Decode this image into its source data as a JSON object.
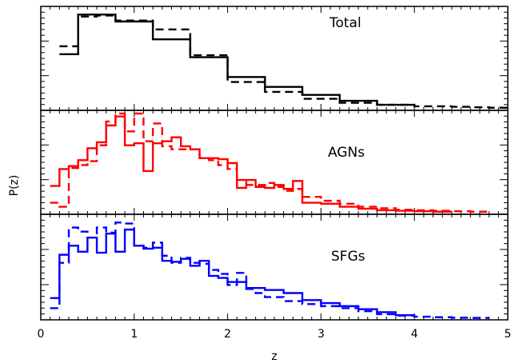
{
  "chart_data": {
    "type": "step",
    "xlabel": "z",
    "ylabel": "P(z)",
    "xlim": [
      0,
      5
    ],
    "x_ticks": [
      0,
      1,
      2,
      3,
      4,
      5
    ],
    "x_tick_labels": [
      "0",
      "1",
      "2",
      "3",
      "4",
      "5"
    ],
    "panels": [
      {
        "label": "Total",
        "color": "#000000",
        "ylim": [
          0,
          1.0
        ],
        "series": [
          {
            "style": "solid",
            "edges": [
              0.2,
              0.4,
              0.8,
              1.2,
              1.6,
              2.0,
              2.4,
              2.8,
              3.2,
              3.6,
              4.0
            ],
            "values": [
              0.55,
              0.95,
              0.88,
              0.7,
              0.52,
              0.32,
              0.22,
              0.14,
              0.08,
              0.04
            ]
          },
          {
            "style": "dashed",
            "edges": [
              0.2,
              0.4,
              0.6,
              0.8,
              1.0,
              1.2,
              1.4,
              1.6,
              1.8,
              2.0,
              2.2,
              2.4,
              2.6,
              2.8,
              3.0,
              3.2,
              3.4,
              3.6,
              3.8,
              4.0,
              4.2,
              4.4,
              4.6,
              4.8,
              5.0
            ],
            "values": [
              0.63,
              0.93,
              0.94,
              0.89,
              0.89,
              0.8,
              0.8,
              0.54,
              0.54,
              0.27,
              0.27,
              0.17,
              0.17,
              0.1,
              0.1,
              0.06,
              0.06,
              0.04,
              0.04,
              0.025,
              0.025,
              0.02,
              0.015,
              0.01
            ]
          }
        ]
      },
      {
        "label": "AGNs",
        "color": "#ff0000",
        "ylim": [
          0,
          1.0
        ],
        "series": [
          {
            "style": "solid",
            "edges": [
              0.1,
              0.2,
              0.3,
              0.4,
              0.5,
              0.6,
              0.7,
              0.8,
              0.9,
              1.0,
              1.1,
              1.2,
              1.3,
              1.4,
              1.5,
              1.6,
              1.7,
              1.8,
              1.9,
              2.0,
              2.1,
              2.2,
              2.3,
              2.4,
              2.5,
              2.6,
              2.7,
              2.8,
              3.0,
              3.2,
              3.4,
              3.6,
              3.8,
              4.0,
              4.2,
              4.4
            ],
            "values": [
              0.27,
              0.44,
              0.47,
              0.53,
              0.65,
              0.71,
              0.88,
              0.97,
              0.68,
              0.7,
              0.42,
              0.7,
              0.72,
              0.76,
              0.67,
              0.64,
              0.55,
              0.55,
              0.54,
              0.5,
              0.25,
              0.33,
              0.26,
              0.25,
              0.28,
              0.24,
              0.32,
              0.1,
              0.09,
              0.06,
              0.04,
              0.025,
              0.02,
              0.015,
              0.01
            ]
          },
          {
            "style": "dashed",
            "edges": [
              0.1,
              0.2,
              0.3,
              0.4,
              0.5,
              0.6,
              0.7,
              0.8,
              0.9,
              1.0,
              1.1,
              1.2,
              1.3,
              1.4,
              1.5,
              1.6,
              1.7,
              1.8,
              1.9,
              2.0,
              2.1,
              2.2,
              2.3,
              2.4,
              2.5,
              2.6,
              2.7,
              2.8,
              3.0,
              3.2,
              3.4,
              3.6,
              3.8,
              4.0,
              4.2,
              4.4,
              4.6,
              4.8
            ],
            "values": [
              0.1,
              0.06,
              0.45,
              0.48,
              0.52,
              0.68,
              0.92,
              1.0,
              0.82,
              1.0,
              0.72,
              0.9,
              0.67,
              0.64,
              0.64,
              0.64,
              0.55,
              0.53,
              0.48,
              0.44,
              0.33,
              0.28,
              0.28,
              0.3,
              0.26,
              0.22,
              0.24,
              0.16,
              0.12,
              0.09,
              0.06,
              0.045,
              0.03,
              0.025,
              0.02,
              0.015,
              0.01
            ]
          }
        ]
      },
      {
        "label": "SFGs",
        "color": "#0000ff",
        "ylim": [
          0,
          1.0
        ],
        "series": [
          {
            "style": "solid",
            "edges": [
              0.1,
              0.2,
              0.3,
              0.4,
              0.5,
              0.6,
              0.7,
              0.8,
              0.9,
              1.0,
              1.1,
              1.2,
              1.3,
              1.4,
              1.5,
              1.6,
              1.7,
              1.8,
              1.9,
              2.0,
              2.2,
              2.4,
              2.6,
              2.8,
              3.0,
              3.2,
              3.4,
              3.6,
              3.8,
              4.0
            ],
            "values": [
              0.2,
              0.63,
              0.72,
              0.66,
              0.8,
              0.65,
              0.84,
              0.66,
              0.88,
              0.72,
              0.69,
              0.7,
              0.57,
              0.56,
              0.59,
              0.52,
              0.57,
              0.42,
              0.4,
              0.36,
              0.3,
              0.28,
              0.25,
              0.18,
              0.15,
              0.12,
              0.09,
              0.06,
              0.03
            ]
          },
          {
            "style": "dashed",
            "edges": [
              0.1,
              0.2,
              0.3,
              0.4,
              0.5,
              0.6,
              0.7,
              0.8,
              0.9,
              1.0,
              1.1,
              1.2,
              1.3,
              1.4,
              1.5,
              1.6,
              1.7,
              1.8,
              1.9,
              2.0,
              2.1,
              2.2,
              2.3,
              2.4,
              2.6,
              2.8,
              3.0,
              3.2,
              3.4,
              3.6,
              3.8,
              4.0,
              4.2,
              4.4,
              4.6,
              4.8
            ],
            "values": [
              0.1,
              0.55,
              0.9,
              0.86,
              0.8,
              0.9,
              0.85,
              0.95,
              0.94,
              0.72,
              0.7,
              0.75,
              0.62,
              0.55,
              0.6,
              0.55,
              0.54,
              0.48,
              0.44,
              0.33,
              0.45,
              0.29,
              0.25,
              0.21,
              0.17,
              0.14,
              0.12,
              0.1,
              0.07,
              0.04,
              0.025,
              0.015,
              0.01,
              0.005,
              0.003
            ]
          }
        ]
      }
    ]
  }
}
